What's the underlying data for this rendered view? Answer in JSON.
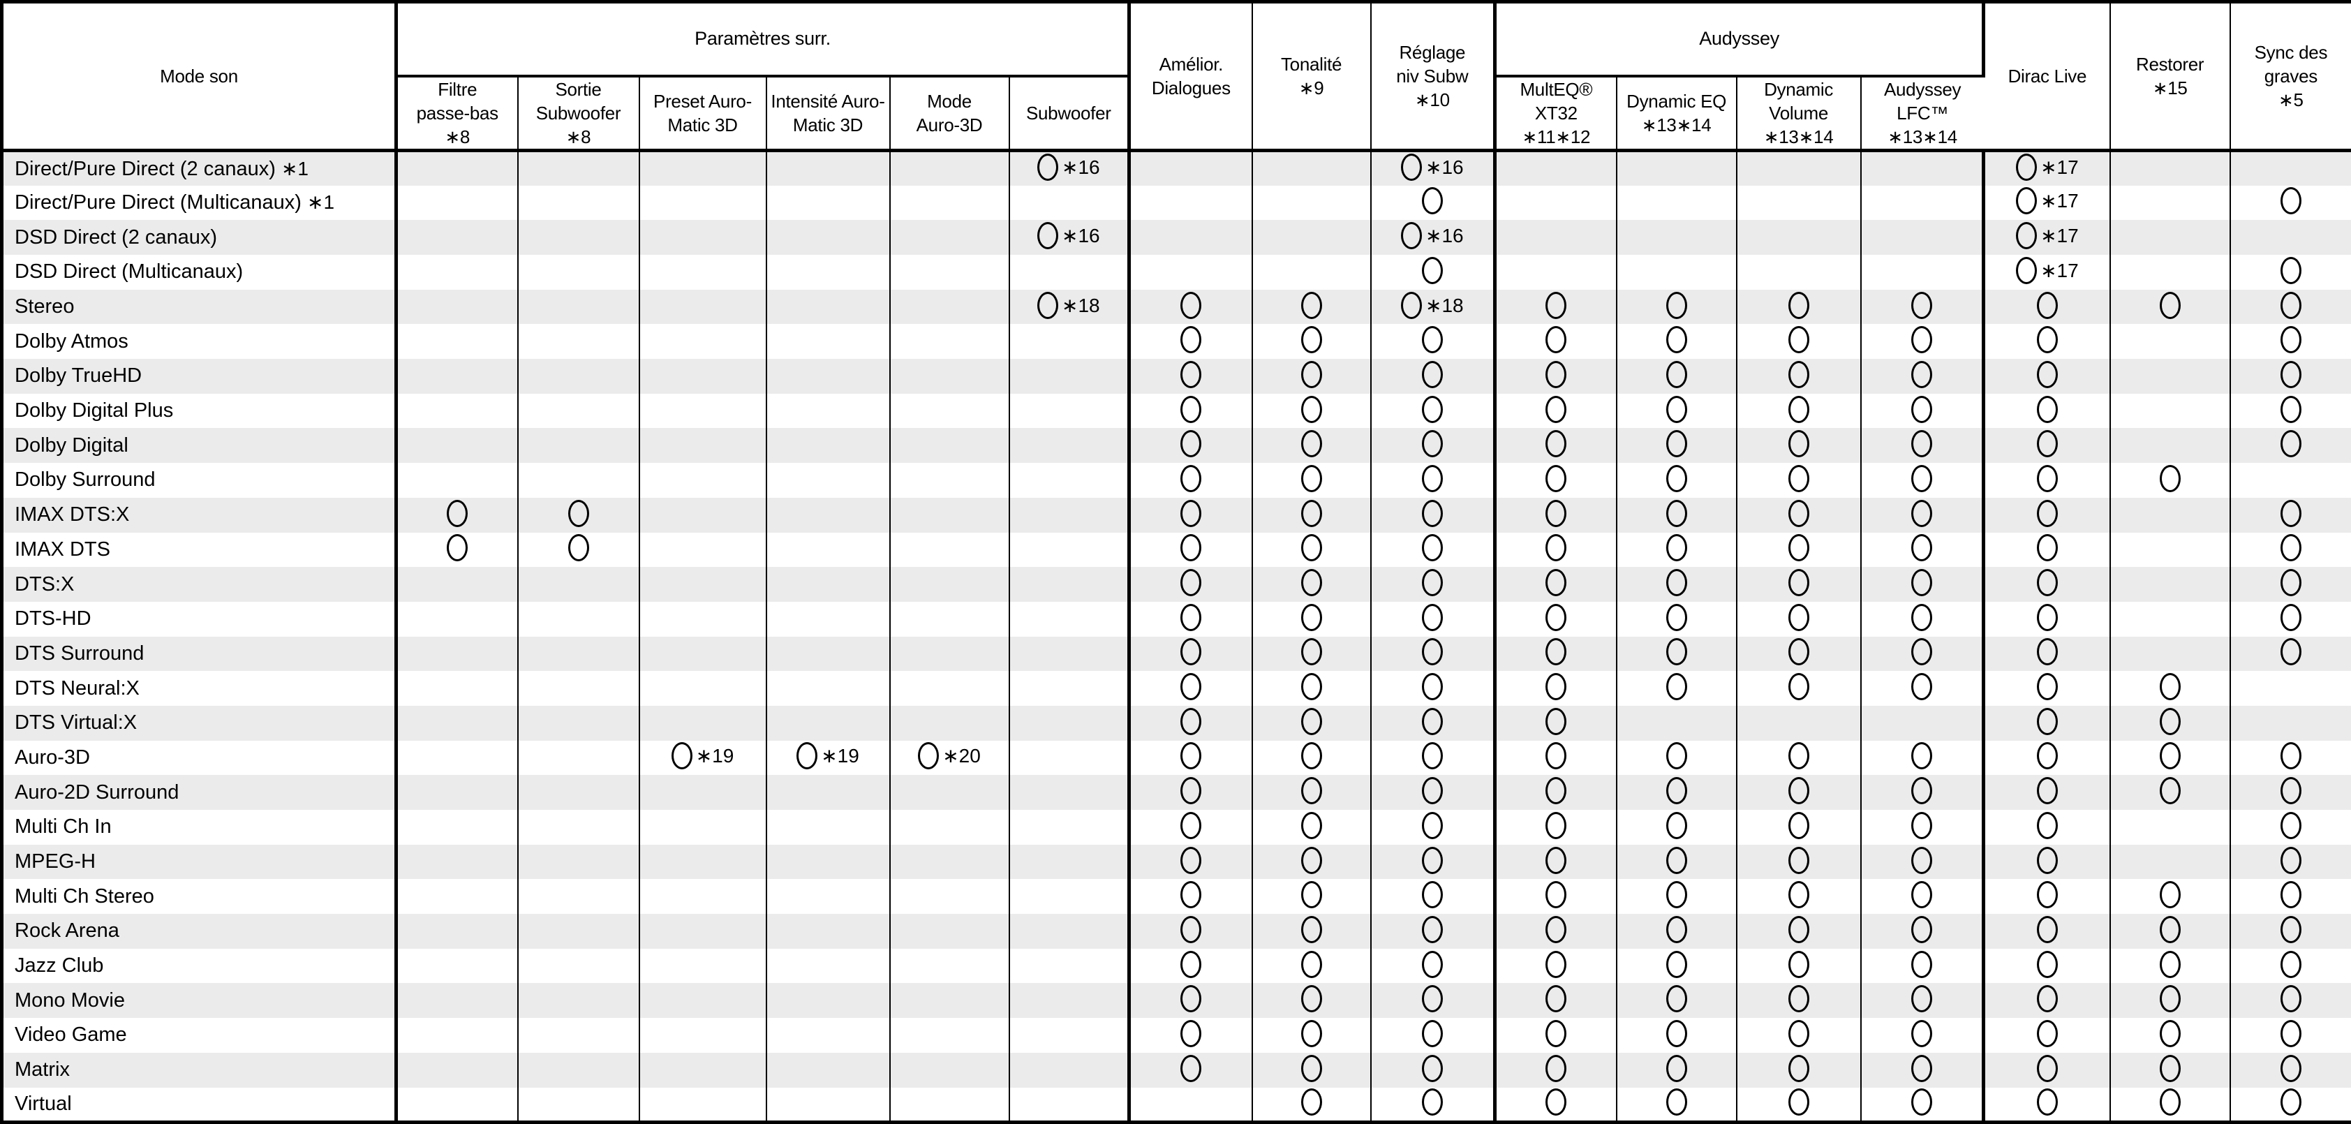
{
  "table_title_column": "Mode son",
  "groups": {
    "surround": "Paramètres surr.",
    "audyssey": "Audyssey"
  },
  "columns": [
    {
      "key": "filtre",
      "label": "Filtre\npasse-bas\n∗8"
    },
    {
      "key": "sortie",
      "label": "Sortie\nSubwoofer\n∗8"
    },
    {
      "key": "preset",
      "label": "Preset Auro-\nMatic 3D"
    },
    {
      "key": "intensite",
      "label": "Intensité Auro-\nMatic 3D"
    },
    {
      "key": "mode_auro",
      "label": "Mode\nAuro-3D"
    },
    {
      "key": "subwoofer",
      "label": "Subwoofer"
    },
    {
      "key": "amelior",
      "label": "Amélior.\nDialogues"
    },
    {
      "key": "tonalite",
      "label": "Tonalité\n∗9"
    },
    {
      "key": "reglage",
      "label": "Réglage\nniv Subw\n∗10"
    },
    {
      "key": "multeq",
      "label": "MultEQ® XT32\n∗11∗12"
    },
    {
      "key": "dyneq",
      "label": "Dynamic EQ\n∗13∗14"
    },
    {
      "key": "dynvol",
      "label": "Dynamic\nVolume\n∗13∗14"
    },
    {
      "key": "lfc",
      "label": "Audyssey\nLFC™\n∗13∗14"
    },
    {
      "key": "dirac",
      "label": "Dirac Live"
    },
    {
      "key": "restorer",
      "label": "Restorer\n∗15"
    },
    {
      "key": "sync",
      "label": "Sync des\ngraves\n∗5"
    }
  ],
  "mark_legend": {
    "O": "circle-mark"
  },
  "rows": [
    {
      "label": "Direct/Pure Direct (2 canaux)",
      "foot": "∗1",
      "cells": [
        "",
        "",
        "",
        "",
        "",
        "O∗16",
        "",
        "",
        "O∗16",
        "",
        "",
        "",
        "",
        "O∗17",
        "",
        ""
      ]
    },
    {
      "label": "Direct/Pure Direct (Multicanaux)",
      "foot": "∗1",
      "cells": [
        "",
        "",
        "",
        "",
        "",
        "",
        "",
        "",
        "O",
        "",
        "",
        "",
        "",
        "O∗17",
        "",
        "O"
      ]
    },
    {
      "label": "DSD Direct (2 canaux)",
      "foot": "",
      "cells": [
        "",
        "",
        "",
        "",
        "",
        "O∗16",
        "",
        "",
        "O∗16",
        "",
        "",
        "",
        "",
        "O∗17",
        "",
        ""
      ]
    },
    {
      "label": "DSD Direct (Multicanaux)",
      "foot": "",
      "cells": [
        "",
        "",
        "",
        "",
        "",
        "",
        "",
        "",
        "O",
        "",
        "",
        "",
        "",
        "O∗17",
        "",
        "O"
      ]
    },
    {
      "label": "Stereo",
      "foot": "",
      "cells": [
        "",
        "",
        "",
        "",
        "",
        "O∗18",
        "O",
        "O",
        "O∗18",
        "O",
        "O",
        "O",
        "O",
        "O",
        "O",
        "O"
      ]
    },
    {
      "label": "Dolby Atmos",
      "foot": "",
      "cells": [
        "",
        "",
        "",
        "",
        "",
        "",
        "O",
        "O",
        "O",
        "O",
        "O",
        "O",
        "O",
        "O",
        "",
        "O"
      ]
    },
    {
      "label": "Dolby TrueHD",
      "foot": "",
      "cells": [
        "",
        "",
        "",
        "",
        "",
        "",
        "O",
        "O",
        "O",
        "O",
        "O",
        "O",
        "O",
        "O",
        "",
        "O"
      ]
    },
    {
      "label": "Dolby Digital Plus",
      "foot": "",
      "cells": [
        "",
        "",
        "",
        "",
        "",
        "",
        "O",
        "O",
        "O",
        "O",
        "O",
        "O",
        "O",
        "O",
        "",
        "O"
      ]
    },
    {
      "label": "Dolby Digital",
      "foot": "",
      "cells": [
        "",
        "",
        "",
        "",
        "",
        "",
        "O",
        "O",
        "O",
        "O",
        "O",
        "O",
        "O",
        "O",
        "",
        "O"
      ]
    },
    {
      "label": "Dolby Surround",
      "foot": "",
      "cells": [
        "",
        "",
        "",
        "",
        "",
        "",
        "O",
        "O",
        "O",
        "O",
        "O",
        "O",
        "O",
        "O",
        "O",
        ""
      ]
    },
    {
      "label": "IMAX DTS:X",
      "foot": "",
      "cells": [
        "O",
        "O",
        "",
        "",
        "",
        "",
        "O",
        "O",
        "O",
        "O",
        "O",
        "O",
        "O",
        "O",
        "",
        "O"
      ]
    },
    {
      "label": "IMAX DTS",
      "foot": "",
      "cells": [
        "O",
        "O",
        "",
        "",
        "",
        "",
        "O",
        "O",
        "O",
        "O",
        "O",
        "O",
        "O",
        "O",
        "",
        "O"
      ]
    },
    {
      "label": "DTS:X",
      "foot": "",
      "cells": [
        "",
        "",
        "",
        "",
        "",
        "",
        "O",
        "O",
        "O",
        "O",
        "O",
        "O",
        "O",
        "O",
        "",
        "O"
      ]
    },
    {
      "label": "DTS-HD",
      "foot": "",
      "cells": [
        "",
        "",
        "",
        "",
        "",
        "",
        "O",
        "O",
        "O",
        "O",
        "O",
        "O",
        "O",
        "O",
        "",
        "O"
      ]
    },
    {
      "label": "DTS Surround",
      "foot": "",
      "cells": [
        "",
        "",
        "",
        "",
        "",
        "",
        "O",
        "O",
        "O",
        "O",
        "O",
        "O",
        "O",
        "O",
        "",
        "O"
      ]
    },
    {
      "label": "DTS Neural:X",
      "foot": "",
      "cells": [
        "",
        "",
        "",
        "",
        "",
        "",
        "O",
        "O",
        "O",
        "O",
        "O",
        "O",
        "O",
        "O",
        "O",
        ""
      ]
    },
    {
      "label": "DTS Virtual:X",
      "foot": "",
      "cells": [
        "",
        "",
        "",
        "",
        "",
        "",
        "O",
        "O",
        "O",
        "O",
        "",
        "",
        "",
        "O",
        "O",
        ""
      ]
    },
    {
      "label": "Auro-3D",
      "foot": "",
      "cells": [
        "",
        "",
        "O∗19",
        "O∗19",
        "O∗20",
        "",
        "O",
        "O",
        "O",
        "O",
        "O",
        "O",
        "O",
        "O",
        "O",
        "O"
      ]
    },
    {
      "label": "Auro-2D Surround",
      "foot": "",
      "cells": [
        "",
        "",
        "",
        "",
        "",
        "",
        "O",
        "O",
        "O",
        "O",
        "O",
        "O",
        "O",
        "O",
        "O",
        "O"
      ]
    },
    {
      "label": "Multi Ch In",
      "foot": "",
      "cells": [
        "",
        "",
        "",
        "",
        "",
        "",
        "O",
        "O",
        "O",
        "O",
        "O",
        "O",
        "O",
        "O",
        "",
        "O"
      ]
    },
    {
      "label": "MPEG-H",
      "foot": "",
      "cells": [
        "",
        "",
        "",
        "",
        "",
        "",
        "O",
        "O",
        "O",
        "O",
        "O",
        "O",
        "O",
        "O",
        "",
        "O"
      ]
    },
    {
      "label": "Multi Ch Stereo",
      "foot": "",
      "cells": [
        "",
        "",
        "",
        "",
        "",
        "",
        "O",
        "O",
        "O",
        "O",
        "O",
        "O",
        "O",
        "O",
        "O",
        "O"
      ]
    },
    {
      "label": "Rock Arena",
      "foot": "",
      "cells": [
        "",
        "",
        "",
        "",
        "",
        "",
        "O",
        "O",
        "O",
        "O",
        "O",
        "O",
        "O",
        "O",
        "O",
        "O"
      ]
    },
    {
      "label": "Jazz Club",
      "foot": "",
      "cells": [
        "",
        "",
        "",
        "",
        "",
        "",
        "O",
        "O",
        "O",
        "O",
        "O",
        "O",
        "O",
        "O",
        "O",
        "O"
      ]
    },
    {
      "label": "Mono Movie",
      "foot": "",
      "cells": [
        "",
        "",
        "",
        "",
        "",
        "",
        "O",
        "O",
        "O",
        "O",
        "O",
        "O",
        "O",
        "O",
        "O",
        "O"
      ]
    },
    {
      "label": "Video Game",
      "foot": "",
      "cells": [
        "",
        "",
        "",
        "",
        "",
        "",
        "O",
        "O",
        "O",
        "O",
        "O",
        "O",
        "O",
        "O",
        "O",
        "O"
      ]
    },
    {
      "label": "Matrix",
      "foot": "",
      "cells": [
        "",
        "",
        "",
        "",
        "",
        "",
        "O",
        "O",
        "O",
        "O",
        "O",
        "O",
        "O",
        "O",
        "O",
        "O"
      ]
    },
    {
      "label": "Virtual",
      "foot": "",
      "cells": [
        "",
        "",
        "",
        "",
        "",
        "",
        "",
        "O",
        "O",
        "O",
        "O",
        "O",
        "O",
        "O",
        "O",
        "O"
      ]
    }
  ]
}
